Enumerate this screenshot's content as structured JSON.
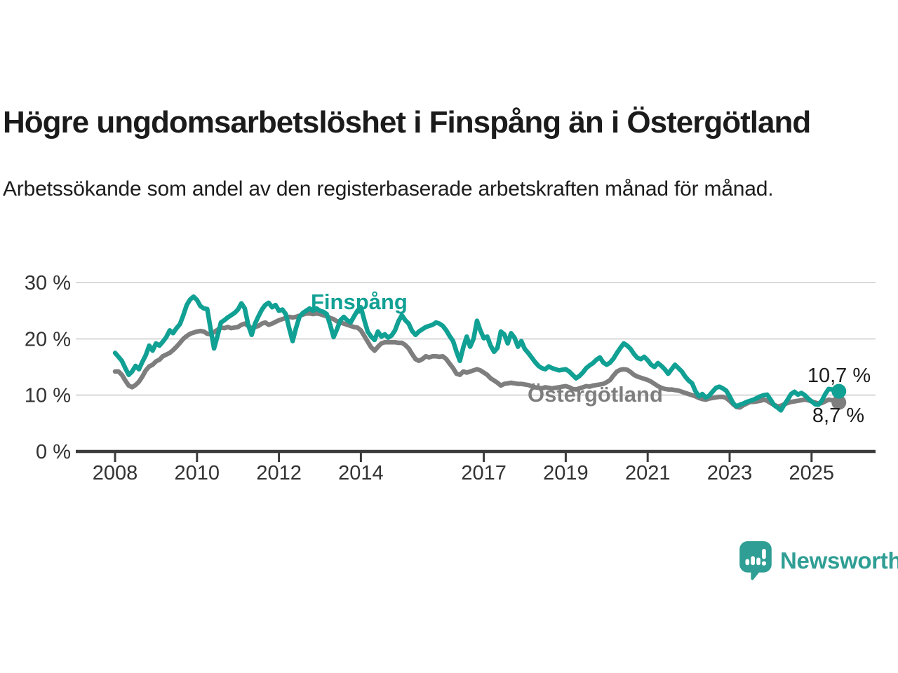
{
  "title": "Högre ungdomsarbetslöshet i Finspång än i Östergötland",
  "subtitle": "Arbetssökande som andel av den registerbaserade arbetskraften månad för månad.",
  "branding": {
    "logo_text": "Newsworthy",
    "logo_color": "#2f9e94"
  },
  "colors": {
    "finspang": "#11a094",
    "ostergotland": "#7e7e7e",
    "grid": "#d9d9d9",
    "axis": "#3b3b3b",
    "text": "#1c1c1c",
    "tick_label": "#333333"
  },
  "chart_data": {
    "type": "line",
    "frequency": "monthly",
    "x_start": "2008-01",
    "x_end": "2025-09",
    "ylim": [
      0,
      32
    ],
    "grid": true,
    "legend_position": "inline-labels",
    "x_tick_years": [
      2008,
      2010,
      2012,
      2014,
      2017,
      2019,
      2021,
      2023,
      2025
    ],
    "y_ticks": [
      {
        "value": 0,
        "label": "0 %"
      },
      {
        "value": 10,
        "label": "10 %"
      },
      {
        "value": 20,
        "label": "20 %"
      },
      {
        "value": 30,
        "label": "30 %"
      }
    ],
    "series": [
      {
        "name": "Östergötland",
        "end_value_label": "8,7 %",
        "values": [
          14.2,
          14.2,
          13.6,
          12.6,
          11.7,
          11.4,
          11.8,
          12.4,
          13.3,
          14.4,
          15.1,
          15.4,
          16.0,
          16.3,
          16.9,
          17.2,
          17.5,
          18.0,
          18.6,
          19.3,
          20.0,
          20.5,
          20.9,
          21.1,
          21.3,
          21.4,
          21.3,
          20.9,
          20.8,
          21.2,
          21.6,
          22.0,
          21.9,
          22.1,
          21.9,
          22.0,
          22.1,
          22.5,
          22.7,
          22.3,
          21.9,
          22.1,
          22.3,
          22.7,
          22.9,
          22.5,
          22.7,
          23.0,
          23.3,
          23.5,
          23.7,
          23.9,
          23.8,
          23.9,
          24.1,
          24.3,
          24.5,
          24.5,
          24.4,
          24.5,
          24.4,
          24.2,
          24.0,
          23.7,
          23.5,
          23.1,
          22.9,
          22.7,
          22.5,
          22.3,
          22.1,
          22.0,
          21.5,
          20.5,
          19.5,
          18.5,
          17.9,
          18.6,
          19.2,
          19.4,
          19.4,
          19.4,
          19.4,
          19.3,
          19.3,
          18.9,
          18.3,
          17.3,
          16.4,
          16.1,
          16.4,
          16.9,
          16.7,
          16.9,
          16.9,
          16.8,
          16.9,
          16.4,
          15.6,
          14.8,
          13.8,
          13.6,
          14.2,
          14.0,
          14.2,
          14.4,
          14.6,
          14.4,
          14.0,
          13.6,
          13.0,
          12.6,
          12.2,
          11.7,
          12.0,
          12.1,
          12.2,
          12.1,
          12.0,
          12.0,
          11.9,
          11.8,
          11.6,
          11.4,
          11.3,
          11.2,
          11.4,
          11.3,
          11.2,
          11.3,
          11.4,
          11.5,
          11.6,
          11.4,
          11.1,
          11.0,
          11.2,
          11.4,
          11.6,
          11.5,
          11.7,
          11.8,
          11.9,
          12.0,
          12.3,
          12.7,
          13.5,
          14.2,
          14.5,
          14.6,
          14.5,
          14.1,
          13.6,
          13.3,
          13.1,
          12.9,
          12.7,
          12.4,
          12.0,
          11.6,
          11.3,
          11.1,
          11.0,
          11.0,
          10.9,
          10.8,
          10.6,
          10.4,
          10.2,
          10.0,
          9.8,
          9.5,
          9.3,
          9.2,
          9.4,
          9.5,
          9.6,
          9.7,
          9.7,
          9.5,
          9.0,
          8.4,
          7.9,
          7.8,
          8.2,
          8.5,
          8.8,
          8.8,
          8.9,
          9.0,
          9.2,
          9.0,
          8.6,
          8.3,
          8.0,
          8.1,
          8.4,
          8.6,
          8.8,
          8.9,
          9.0,
          9.1,
          9.2,
          9.1,
          8.9,
          8.7,
          8.5,
          8.6,
          8.9,
          9.2,
          9.1,
          8.9,
          8.7
        ]
      },
      {
        "name": "Finspång",
        "end_value_label": "10,7 %",
        "values": [
          17.5,
          16.8,
          16.1,
          14.8,
          13.6,
          14.2,
          15.2,
          14.6,
          15.9,
          17.1,
          18.8,
          17.9,
          19.2,
          18.8,
          19.5,
          20.3,
          21.5,
          21.0,
          21.9,
          22.6,
          24.2,
          26.0,
          27.0,
          27.5,
          26.9,
          25.8,
          25.4,
          25.3,
          21.7,
          18.3,
          20.5,
          22.9,
          23.3,
          23.8,
          24.2,
          24.6,
          25.2,
          26.3,
          25.4,
          22.5,
          20.7,
          22.7,
          24.0,
          25.2,
          26.0,
          26.4,
          25.6,
          26.0,
          25.0,
          25.2,
          24.4,
          21.9,
          19.6,
          21.9,
          23.9,
          24.6,
          25.0,
          25.4,
          25.0,
          25.4,
          25.0,
          24.8,
          24.4,
          22.5,
          20.3,
          21.7,
          23.3,
          23.9,
          23.3,
          22.9,
          24.0,
          25.0,
          25.6,
          23.3,
          21.3,
          20.4,
          19.8,
          21.3,
          20.4,
          20.8,
          20.2,
          20.6,
          21.5,
          23.1,
          24.2,
          23.3,
          22.7,
          21.4,
          20.7,
          21.3,
          21.7,
          22.1,
          22.3,
          22.5,
          22.9,
          22.7,
          22.3,
          21.5,
          20.5,
          19.6,
          17.7,
          16.1,
          18.5,
          20.4,
          18.6,
          20.0,
          23.2,
          21.5,
          20.1,
          20.4,
          18.8,
          17.7,
          18.4,
          21.3,
          20.8,
          19.2,
          21.0,
          20.2,
          18.6,
          19.6,
          18.2,
          17.5,
          16.7,
          15.9,
          15.2,
          14.8,
          14.6,
          15.1,
          14.8,
          14.6,
          14.4,
          14.5,
          14.6,
          14.2,
          13.6,
          13.0,
          13.4,
          14.0,
          14.8,
          15.3,
          15.7,
          16.3,
          16.7,
          15.8,
          15.4,
          15.8,
          16.5,
          17.5,
          18.4,
          19.2,
          18.8,
          18.2,
          17.3,
          16.6,
          16.4,
          16.8,
          16.2,
          15.4,
          15.0,
          15.7,
          15.2,
          14.6,
          13.8,
          14.6,
          15.4,
          14.8,
          14.2,
          13.3,
          12.6,
          12.1,
          10.7,
          9.8,
          10.2,
          9.6,
          9.9,
          10.6,
          11.3,
          11.5,
          11.2,
          10.8,
          9.8,
          8.6,
          8.0,
          8.3,
          8.5,
          8.8,
          9.0,
          9.2,
          9.5,
          9.8,
          10.0,
          10.1,
          9.2,
          8.2,
          7.8,
          7.3,
          8.3,
          9.2,
          10.2,
          10.6,
          10.1,
          10.4,
          10.0,
          9.4,
          8.9,
          8.4,
          8.3,
          9.0,
          10.2,
          11.1,
          11.0,
          10.8,
          10.7
        ]
      }
    ]
  }
}
